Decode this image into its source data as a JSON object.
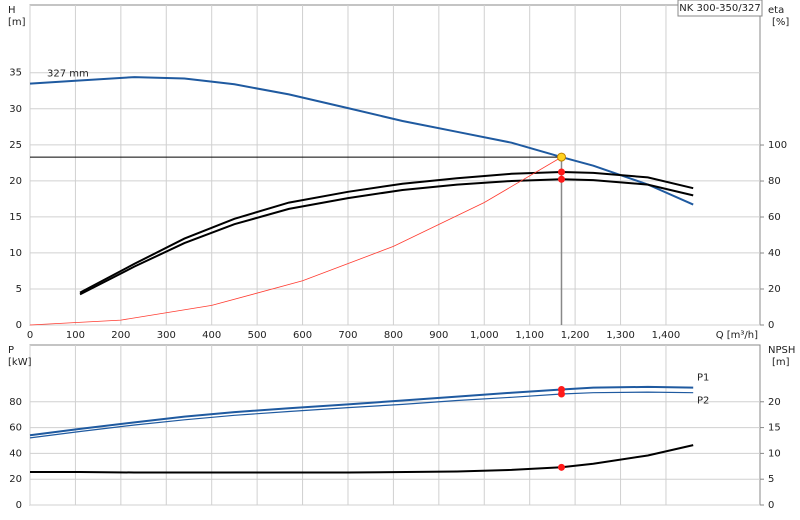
{
  "chart_data": [
    {
      "type": "line",
      "title": "NK 300-350/327",
      "x_label": "Q [m³/h]",
      "y_label": "H",
      "y_unit": "[m]",
      "y2_label": "eta",
      "y2_unit": "[%]",
      "xlim": [
        0,
        1607
      ],
      "xticks": [
        0,
        100,
        200,
        300,
        400,
        500,
        600,
        700,
        800,
        900,
        {
          "value": 1000,
          "label": "1,000"
        },
        {
          "value": 1100,
          "label": "1,100"
        },
        {
          "value": 1200,
          "label": "1,200"
        },
        {
          "value": 1300,
          "label": "1,300"
        },
        {
          "value": 1400,
          "label": "1,400"
        }
      ],
      "ylim": [
        0,
        44.4
      ],
      "yticks": [
        0,
        5,
        10,
        15,
        20,
        25,
        30,
        35
      ],
      "y2lim": [
        0,
        177.8
      ],
      "y2ticks": [
        0,
        20,
        40,
        60,
        80,
        100
      ],
      "grid": true,
      "operating_point": {
        "x": 1170,
        "y": 23.3
      },
      "series": [
        {
          "name": "327 mm",
          "color": "#1f5aa0",
          "x": [
            0,
            100,
            230,
            340,
            450,
            570,
            700,
            820,
            940,
            1060,
            1170,
            1240,
            1360,
            1460
          ],
          "values": [
            33.5,
            33.9,
            34.4,
            34.2,
            33.4,
            32,
            30.1,
            28.3,
            26.8,
            25.3,
            23.3,
            22.1,
            19.5,
            16.7
          ]
        },
        {
          "color": "#000000",
          "axis": "y2",
          "x": [
            110,
            230,
            340,
            450,
            570,
            700,
            820,
            940,
            1060,
            1170,
            1240,
            1360,
            1460
          ],
          "values": [
            18,
            34,
            48,
            59,
            68,
            74,
            78.5,
            81.5,
            84,
            85,
            84.5,
            82,
            76
          ]
        },
        {
          "color": "#000000",
          "axis": "y2",
          "x": [
            110,
            230,
            340,
            450,
            570,
            700,
            820,
            940,
            1060,
            1170,
            1240,
            1360,
            1460
          ],
          "values": [
            17,
            32.5,
            45.5,
            56,
            64.5,
            70.5,
            75,
            78,
            80,
            81,
            80.5,
            78,
            72
          ]
        },
        {
          "color": "#ff3b30",
          "x": [
            0,
            200,
            400,
            600,
            800,
            1000,
            1170
          ],
          "values": [
            0,
            0.68,
            2.72,
            6.13,
            10.9,
            17,
            23.3
          ]
        }
      ]
    },
    {
      "type": "line",
      "y_label": "P",
      "y_unit": "[kW]",
      "y2_label": "NPSH",
      "y2_unit": "[m]",
      "xlim": [
        0,
        1607
      ],
      "ylim": [
        0,
        124
      ],
      "yticks": [
        0,
        20,
        40,
        60,
        80
      ],
      "y2lim": [
        0,
        31
      ],
      "y2ticks": [
        0,
        5,
        10,
        15,
        20
      ],
      "grid": true,
      "series": [
        {
          "name": "P1",
          "color": "#1f5aa0",
          "x": [
            0,
            110,
            230,
            340,
            450,
            570,
            700,
            820,
            940,
            1060,
            1170,
            1240,
            1360,
            1460
          ],
          "values": [
            54,
            59,
            64,
            68.5,
            72,
            75,
            78,
            81,
            84,
            87,
            89.5,
            91,
            91.5,
            91
          ]
        },
        {
          "name": "P2",
          "color": "#1f5aa0",
          "x": [
            0,
            110,
            230,
            340,
            450,
            570,
            700,
            820,
            940,
            1060,
            1170,
            1240,
            1360,
            1460
          ],
          "values": [
            52,
            57,
            62,
            66,
            69.5,
            72.5,
            75.5,
            78,
            81,
            83.5,
            86,
            87,
            87.5,
            87
          ]
        },
        {
          "color": "#000000",
          "axis": "y2",
          "x": [
            0,
            110,
            230,
            450,
            700,
            940,
            1060,
            1170,
            1240,
            1360,
            1460
          ],
          "values": [
            6.4,
            6.4,
            6.3,
            6.3,
            6.3,
            6.5,
            6.8,
            7.3,
            8,
            9.6,
            11.6
          ]
        }
      ]
    }
  ]
}
